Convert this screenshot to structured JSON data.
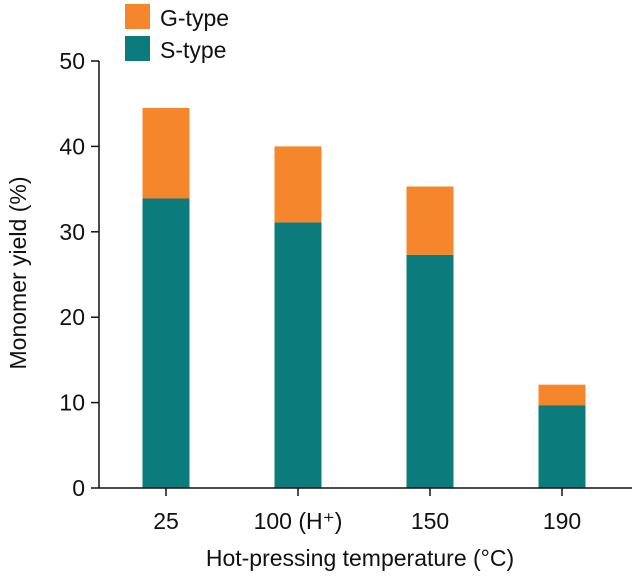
{
  "chart_data": {
    "type": "bar",
    "stacked": true,
    "categories": [
      "25",
      "100 (H⁺)",
      "150",
      "190"
    ],
    "series": [
      {
        "name": "S-type",
        "color": "#0b7b7b",
        "values": [
          33.9,
          31.1,
          27.3,
          9.7
        ]
      },
      {
        "name": "G-type",
        "color": "#f5862b",
        "values": [
          10.6,
          8.9,
          8.0,
          2.4
        ]
      }
    ],
    "legend_order": [
      "G-type",
      "S-type"
    ],
    "legend_position": "top-left",
    "xlabel": "Hot-pressing temperature (°C)",
    "ylabel": "Monomer yield (%)",
    "ylim": [
      0,
      50
    ],
    "yticks": [
      "0",
      "10",
      "20",
      "30",
      "40",
      "50"
    ],
    "grid": false
  }
}
